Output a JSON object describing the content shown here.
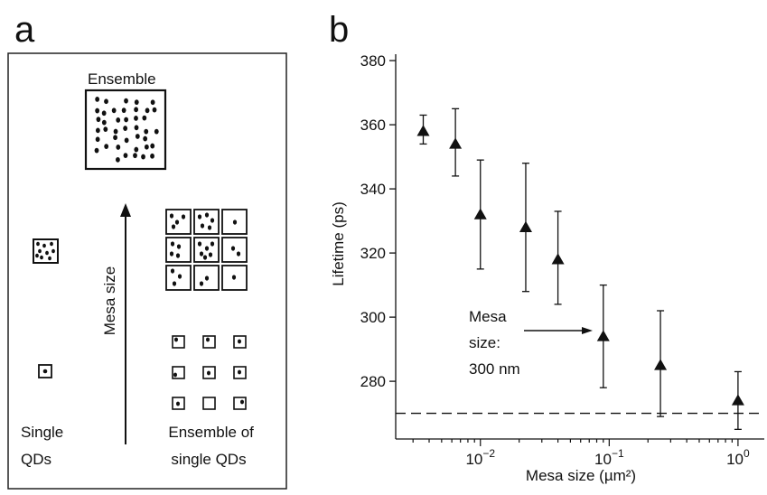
{
  "panel_a": {
    "label": "a",
    "ensemble_label": "Ensemble",
    "arrow_label": "Mesa size",
    "single_label_lines": [
      "Single",
      "QDs"
    ],
    "ensemble_single_label_lines": [
      "Ensemble of",
      "single QDs"
    ]
  },
  "panel_b": {
    "label": "b",
    "annotation_lines": [
      "Mesa",
      "size:",
      "300 nm"
    ]
  },
  "chart_data": {
    "type": "scatter",
    "xscale": "log",
    "xlim": [
      0.0022,
      1.6
    ],
    "ylim": [
      262,
      382
    ],
    "xlabel": "Mesa size (µm²)",
    "ylabel": "Lifetime (ps)",
    "x_ticks": [
      {
        "value": 0.01,
        "base": "10",
        "exp": "−2"
      },
      {
        "value": 0.1,
        "base": "10",
        "exp": "−1"
      },
      {
        "value": 1,
        "base": "10",
        "exp": "0"
      }
    ],
    "y_ticks": [
      280,
      300,
      320,
      340,
      360,
      380
    ],
    "marker": "triangle",
    "grid": false,
    "points": [
      {
        "x": 0.0036,
        "y": 358,
        "err_low": 354,
        "err_high": 363
      },
      {
        "x": 0.0064,
        "y": 354,
        "err_low": 344,
        "err_high": 365
      },
      {
        "x": 0.01,
        "y": 332,
        "err_low": 315,
        "err_high": 349
      },
      {
        "x": 0.0225,
        "y": 328,
        "err_low": 308,
        "err_high": 348
      },
      {
        "x": 0.04,
        "y": 318,
        "err_low": 304,
        "err_high": 333
      },
      {
        "x": 0.09,
        "y": 294,
        "err_low": 278,
        "err_high": 310
      },
      {
        "x": 0.25,
        "y": 285,
        "err_low": 269,
        "err_high": 302
      },
      {
        "x": 1.0,
        "y": 274,
        "err_low": 265,
        "err_high": 283
      }
    ],
    "reference_line": {
      "y": 270,
      "style": "dashed"
    }
  }
}
